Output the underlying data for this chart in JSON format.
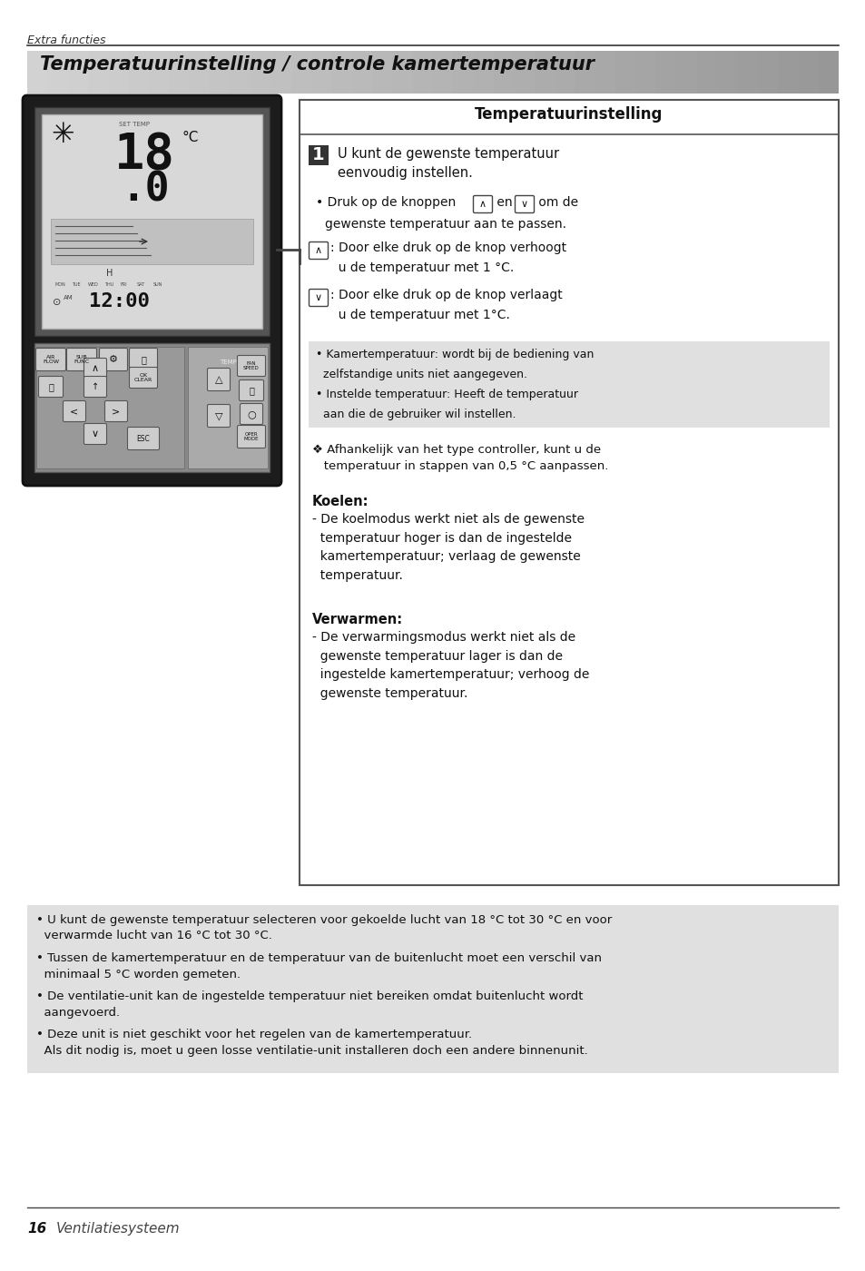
{
  "page_bg": "#ffffff",
  "top_label": "Extra functies",
  "title_text": "Temperatuurinstelling / controle kamertemperatuur",
  "right_box_title": "Temperatuurinstelling",
  "gray_box_lines": [
    "• Kamertemperatuur: wordt bij de bediening van",
    "  zelfstandige units niet aangegeven.",
    "• Instelde temperatuur: Heeft de temperatuur",
    "  aan die de gebruiker wil instellen."
  ],
  "note_star": "❖ Afhankelijk van het type controller, kunt u de\n   temperatuur in stappen van 0,5 °C aanpassen.",
  "koelen_title": "Koelen:",
  "koelen_text": "- De koelmodus werkt niet als de gewenste\n  temperatuur hoger is dan de ingestelde\n  kamertemperatuur; verlaag de gewenste\n  temperatuur.",
  "verwarmen_title": "Verwarmen:",
  "verwarmen_text": "- De verwarmingsmodus werkt niet als de\n  gewenste temperatuur lager is dan de\n  ingestelde kamertemperatuur; verhoog de\n  gewenste temperatuur.",
  "bottom_gray_bullets": [
    "• U kunt de gewenste temperatuur selecteren voor gekoelde lucht van 18 °C tot 30 °C en voor\n  verwarmde lucht van 16 °C tot 30 °C.",
    "• Tussen de kamertemperatuur en de temperatuur van de buitenlucht moet een verschil van\n  minimaal 5 °C worden gemeten.",
    "• De ventilatie-unit kan de ingestelde temperatuur niet bereiken omdat buitenlucht wordt\n  aangevoerd.",
    "• Deze unit is niet geschikt voor het regelen van de kamertemperatuur.\n  Als dit nodig is, moet u geen losse ventilatie-unit installeren doch een andere binnenunit."
  ],
  "footer_number": "16",
  "footer_text": "Ventilatiesysteem"
}
